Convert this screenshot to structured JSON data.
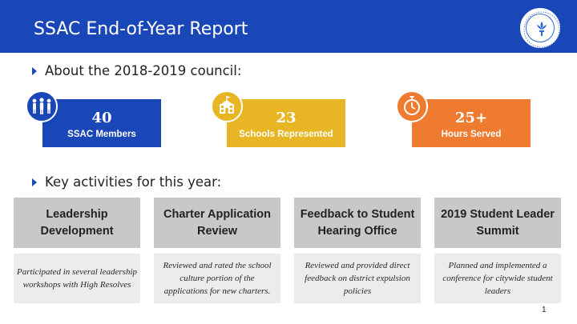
{
  "header": {
    "title": "SSAC End-of-Year Report",
    "logo_text": "ORLEANS PARISH SCHOOL BOARD"
  },
  "bullets": {
    "about": "About the 2018-2019 council:",
    "activities": "Key activities for this year:"
  },
  "stats": [
    {
      "value": "40",
      "label": "SSAC Members",
      "color": "#1a47b8",
      "icon": "people-icon"
    },
    {
      "value": "23",
      "label": "Schools Represented",
      "color": "#e8b624",
      "icon": "school-building-icon"
    },
    {
      "value": "25+",
      "label": "Hours Served",
      "color": "#ee7b30",
      "icon": "stopwatch-icon"
    }
  ],
  "activities": [
    {
      "title": "Leadership Development",
      "desc": "Participated in several leadership workshops with High Resolves"
    },
    {
      "title": "Charter Application Review",
      "desc": "Reviewed and rated the school culture portion of the applications for new charters."
    },
    {
      "title": "Feedback to Student Hearing Office",
      "desc": "Reviewed and provided direct feedback on district expulsion policies"
    },
    {
      "title": "2019 Student Leader Summit",
      "desc": "Planned and implemented a conference for citywide student leaders"
    }
  ],
  "page_number": "1",
  "colors": {
    "brand": "#1a47b8",
    "yellow": "#e8b624",
    "orange": "#ee7b30",
    "gray_head": "#c8c8c8",
    "gray_body": "#ececec"
  }
}
